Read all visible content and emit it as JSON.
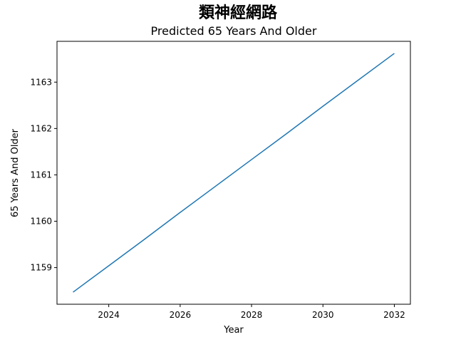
{
  "chart_data": {
    "type": "line",
    "suptitle": "類神經網路",
    "title": "Predicted 65 Years And Older",
    "xlabel": "Year",
    "ylabel": "65 Years And Older",
    "x": [
      2023,
      2024,
      2025,
      2026,
      2027,
      2028,
      2029,
      2030,
      2031,
      2032
    ],
    "series": [
      {
        "values": [
          1158.47,
          1159.04,
          1159.61,
          1160.19,
          1160.76,
          1161.33,
          1161.9,
          1162.48,
          1163.05,
          1163.62
        ],
        "color": "#1f77b4"
      }
    ],
    "xticks": [
      "2024",
      "2026",
      "2028",
      "2030",
      "2032"
    ],
    "yticks": [
      "1159",
      "1160",
      "1161",
      "1162",
      "1163"
    ],
    "xlim": [
      2022.55,
      2032.45
    ],
    "ylim": [
      1158.21,
      1163.88
    ],
    "grid": false,
    "legend": "none"
  }
}
